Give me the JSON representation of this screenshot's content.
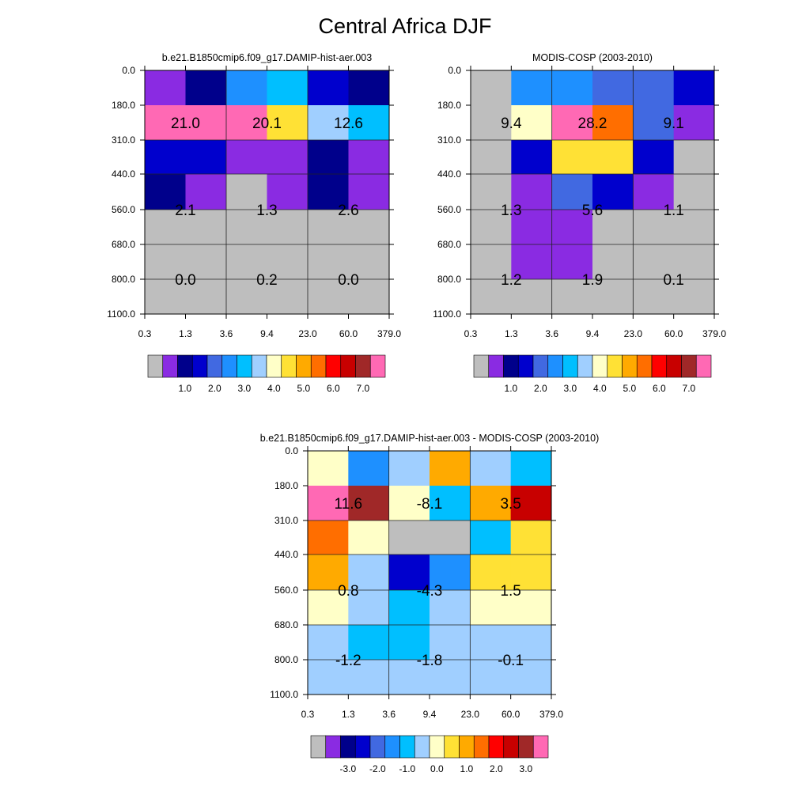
{
  "title": "Central Africa DJF",
  "chart_data": [
    {
      "type": "heatmap",
      "title": "b.e21.B1850cmip6.f09_g17.DAMIP-hist-aer.003",
      "x_tick_labels": [
        "0.3",
        "1.3",
        "3.6",
        "9.4",
        "23.0",
        "60.0",
        "379.0"
      ],
      "y_tick_labels": [
        "0.0",
        "180.0",
        "310.0",
        "440.0",
        "560.0",
        "680.0",
        "800.0",
        "1100.0"
      ],
      "cell_colors": [
        [
          "#8A2BE2",
          "#00008B",
          "#1E90FF",
          "#00BFFF",
          "#0000CD",
          "#00008B"
        ],
        [
          "#FF69B4",
          "#FF69B4",
          "#FF69B4",
          "#FFE135",
          "#A0CFFF",
          "#00BFFF"
        ],
        [
          "#0000CD",
          "#0000CD",
          "#8A2BE2",
          "#8A2BE2",
          "#00008B",
          "#8A2BE2"
        ],
        [
          "#00008B",
          "#8A2BE2",
          "#BEBEBE",
          "#8A2BE2",
          "#00008B",
          "#8A2BE2"
        ],
        [
          "#BEBEBE",
          "#BEBEBE",
          "#BEBEBE",
          "#BEBEBE",
          "#BEBEBE",
          "#BEBEBE"
        ],
        [
          "#BEBEBE",
          "#BEBEBE",
          "#BEBEBE",
          "#BEBEBE",
          "#BEBEBE",
          "#BEBEBE"
        ],
        [
          "#BEBEBE",
          "#BEBEBE",
          "#BEBEBE",
          "#BEBEBE",
          "#BEBEBE",
          "#BEBEBE"
        ]
      ],
      "box_labels": [
        "21.0",
        "20.1",
        "12.6",
        "2.1",
        "1.3",
        "2.6",
        "0.0",
        "0.2",
        "0.0"
      ],
      "colorbar": {
        "colors": [
          "#BEBEBE",
          "#8A2BE2",
          "#00008B",
          "#0000CD",
          "#4169E1",
          "#1E90FF",
          "#00BFFF",
          "#A0CFFF",
          "#FFFFC8",
          "#FFE135",
          "#FFAA00",
          "#FF6E00",
          "#FF0000",
          "#C80000",
          "#A02828",
          "#FF69B4"
        ],
        "labels": [
          "1.0",
          "2.0",
          "3.0",
          "4.0",
          "5.0",
          "6.0",
          "7.0"
        ]
      }
    },
    {
      "type": "heatmap",
      "title": "MODIS-COSP (2003-2010)",
      "x_tick_labels": [
        "0.3",
        "1.3",
        "3.6",
        "9.4",
        "23.0",
        "60.0",
        "379.0"
      ],
      "y_tick_labels": [
        "0.0",
        "180.0",
        "310.0",
        "440.0",
        "560.0",
        "680.0",
        "800.0",
        "1100.0"
      ],
      "cell_colors": [
        [
          "#BEBEBE",
          "#1E90FF",
          "#1E90FF",
          "#4169E1",
          "#4169E1",
          "#0000CD"
        ],
        [
          "#BEBEBE",
          "#FFFFC8",
          "#FF69B4",
          "#FF6E00",
          "#4169E1",
          "#8A2BE2"
        ],
        [
          "#BEBEBE",
          "#0000CD",
          "#FFE135",
          "#FFE135",
          "#0000CD",
          "#BEBEBE"
        ],
        [
          "#BEBEBE",
          "#8A2BE2",
          "#4169E1",
          "#0000CD",
          "#8A2BE2",
          "#BEBEBE"
        ],
        [
          "#BEBEBE",
          "#8A2BE2",
          "#8A2BE2",
          "#BEBEBE",
          "#BEBEBE",
          "#BEBEBE"
        ],
        [
          "#BEBEBE",
          "#8A2BE2",
          "#8A2BE2",
          "#BEBEBE",
          "#BEBEBE",
          "#BEBEBE"
        ],
        [
          "#BEBEBE",
          "#BEBEBE",
          "#BEBEBE",
          "#BEBEBE",
          "#BEBEBE",
          "#BEBEBE"
        ]
      ],
      "box_labels": [
        "9.4",
        "28.2",
        "9.1",
        "1.3",
        "5.6",
        "1.1",
        "1.2",
        "1.9",
        "0.1"
      ],
      "colorbar": {
        "colors": [
          "#BEBEBE",
          "#8A2BE2",
          "#00008B",
          "#0000CD",
          "#4169E1",
          "#1E90FF",
          "#00BFFF",
          "#A0CFFF",
          "#FFFFC8",
          "#FFE135",
          "#FFAA00",
          "#FF6E00",
          "#FF0000",
          "#C80000",
          "#A02828",
          "#FF69B4"
        ],
        "labels": [
          "1.0",
          "2.0",
          "3.0",
          "4.0",
          "5.0",
          "6.0",
          "7.0"
        ]
      }
    },
    {
      "type": "heatmap",
      "title": "b.e21.B1850cmip6.f09_g17.DAMIP-hist-aer.003 - MODIS-COSP (2003-2010)",
      "x_tick_labels": [
        "0.3",
        "1.3",
        "3.6",
        "9.4",
        "23.0",
        "60.0",
        "379.0"
      ],
      "y_tick_labels": [
        "0.0",
        "180.0",
        "310.0",
        "440.0",
        "560.0",
        "680.0",
        "800.0",
        "1100.0"
      ],
      "cell_colors": [
        [
          "#FFFFC8",
          "#1E90FF",
          "#A0CFFF",
          "#FFAA00",
          "#A0CFFF",
          "#00BFFF"
        ],
        [
          "#FF69B4",
          "#A02828",
          "#FFFFC8",
          "#00BFFF",
          "#FFAA00",
          "#C80000"
        ],
        [
          "#FF6E00",
          "#FFFFC8",
          "#BEBEBE",
          "#BEBEBE",
          "#00BFFF",
          "#FFE135"
        ],
        [
          "#FFAA00",
          "#A0CFFF",
          "#0000CD",
          "#1E90FF",
          "#FFE135",
          "#FFE135"
        ],
        [
          "#FFFFC8",
          "#A0CFFF",
          "#00BFFF",
          "#A0CFFF",
          "#FFFFC8",
          "#FFFFC8"
        ],
        [
          "#A0CFFF",
          "#00BFFF",
          "#00BFFF",
          "#A0CFFF",
          "#A0CFFF",
          "#A0CFFF"
        ],
        [
          "#A0CFFF",
          "#A0CFFF",
          "#A0CFFF",
          "#A0CFFF",
          "#A0CFFF",
          "#A0CFFF"
        ]
      ],
      "box_labels": [
        "11.6",
        "-8.1",
        "3.5",
        "0.8",
        "-4.3",
        "1.5",
        "-1.2",
        "-1.8",
        "-0.1"
      ],
      "colorbar": {
        "colors": [
          "#BEBEBE",
          "#8A2BE2",
          "#00008B",
          "#0000CD",
          "#4169E1",
          "#1E90FF",
          "#00BFFF",
          "#A0CFFF",
          "#FFFFC8",
          "#FFE135",
          "#FFAA00",
          "#FF6E00",
          "#FF0000",
          "#C80000",
          "#A02828",
          "#FF69B4"
        ],
        "labels": [
          "-3.0",
          "-2.0",
          "-1.0",
          "0.0",
          "1.0",
          "2.0",
          "3.0"
        ]
      }
    }
  ]
}
